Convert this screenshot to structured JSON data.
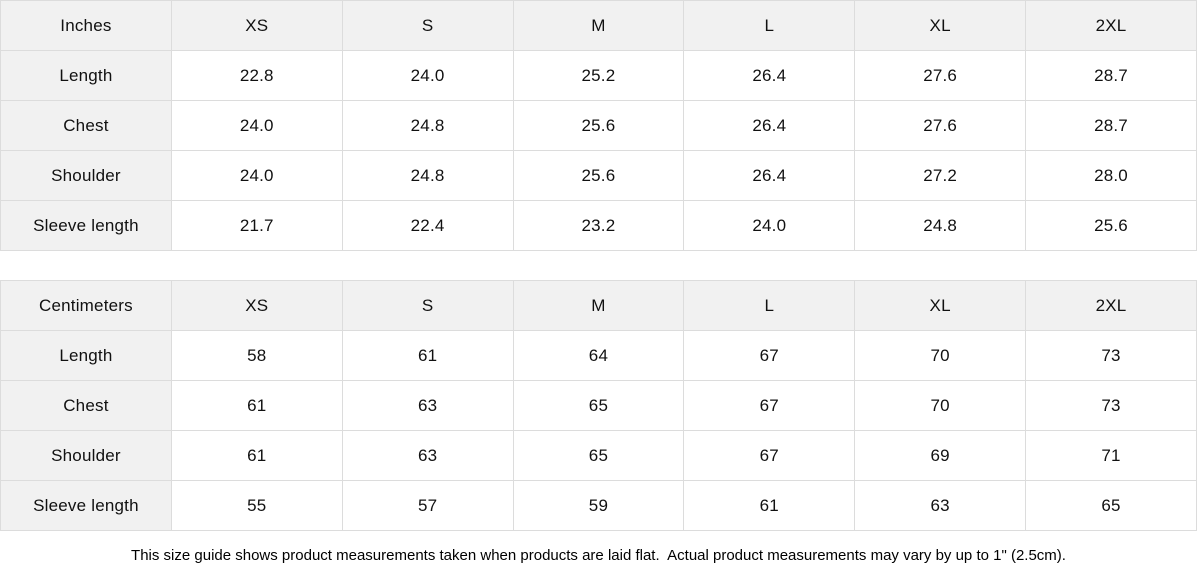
{
  "tables": [
    {
      "unit_label": "Inches",
      "columns": [
        "XS",
        "S",
        "M",
        "L",
        "XL",
        "2XL"
      ],
      "rows": [
        {
          "label": "Length",
          "values": [
            "22.8",
            "24.0",
            "25.2",
            "26.4",
            "27.6",
            "28.7"
          ]
        },
        {
          "label": "Chest",
          "values": [
            "24.0",
            "24.8",
            "25.6",
            "26.4",
            "27.6",
            "28.7"
          ]
        },
        {
          "label": "Shoulder",
          "values": [
            "24.0",
            "24.8",
            "25.6",
            "26.4",
            "27.2",
            "28.0"
          ]
        },
        {
          "label": "Sleeve length",
          "values": [
            "21.7",
            "22.4",
            "23.2",
            "24.0",
            "24.8",
            "25.6"
          ]
        }
      ]
    },
    {
      "unit_label": "Centimeters",
      "columns": [
        "XS",
        "S",
        "M",
        "L",
        "XL",
        "2XL"
      ],
      "rows": [
        {
          "label": "Length",
          "values": [
            "58",
            "61",
            "64",
            "67",
            "70",
            "73"
          ]
        },
        {
          "label": "Chest",
          "values": [
            "61",
            "63",
            "65",
            "67",
            "70",
            "73"
          ]
        },
        {
          "label": "Shoulder",
          "values": [
            "61",
            "63",
            "65",
            "67",
            "69",
            "71"
          ]
        },
        {
          "label": "Sleeve length",
          "values": [
            "55",
            "57",
            "59",
            "61",
            "63",
            "65"
          ]
        }
      ]
    }
  ],
  "footer": {
    "note": "This size guide shows product measurements taken when products are laid flat.  Actual product measurements may vary by up to 1\" (2.5cm)."
  },
  "colors": {
    "header_bg": "#f1f1f1",
    "cell_bg": "#ffffff",
    "border": "#dcdcdc",
    "text": "#111111"
  }
}
